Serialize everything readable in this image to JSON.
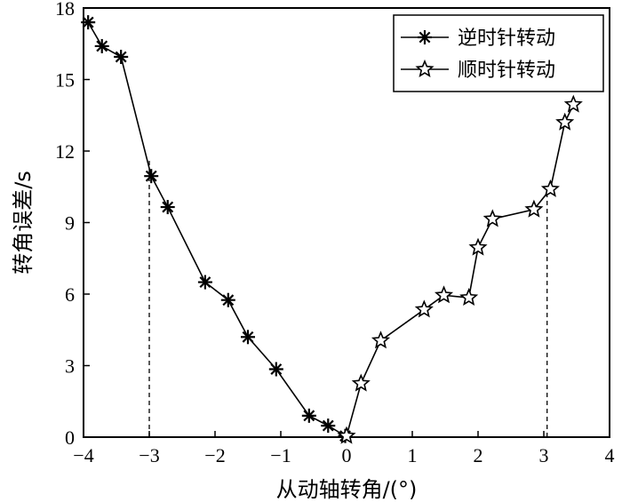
{
  "chart_data": {
    "type": "line",
    "xlabel": "从动轴转角/(°)",
    "ylabel": "转角误差/s",
    "xlim": [
      -4,
      4
    ],
    "ylim": [
      0,
      18
    ],
    "xticks": [
      -4,
      -3,
      -2,
      -1,
      0,
      1,
      2,
      3,
      4
    ],
    "yticks": [
      0,
      3,
      6,
      9,
      12,
      15,
      18
    ],
    "xtick_labels": [
      "−4",
      "−3",
      "−2",
      "−1",
      "0",
      "1",
      "2",
      "3",
      "4"
    ],
    "ytick_labels": [
      "0",
      "3",
      "6",
      "9",
      "12",
      "15",
      "18"
    ],
    "legend_position": "top-right",
    "grid": false,
    "reference_lines": [
      {
        "x": -3.0,
        "y_to": 11.7
      },
      {
        "x": 3.05,
        "y_to": 10.2
      }
    ],
    "series": [
      {
        "name": "逆时针转动",
        "marker": "asterisk",
        "points": [
          [
            -3.93,
            17.4
          ],
          [
            -3.72,
            16.4
          ],
          [
            -3.43,
            15.95
          ],
          [
            -2.97,
            10.95
          ],
          [
            -2.72,
            9.65
          ],
          [
            -2.15,
            6.5
          ],
          [
            -1.8,
            5.75
          ],
          [
            -1.5,
            4.2
          ],
          [
            -1.07,
            2.85
          ],
          [
            -0.57,
            0.9
          ],
          [
            -0.28,
            0.48
          ],
          [
            -0.02,
            0.05
          ]
        ]
      },
      {
        "name": "顺时针转动",
        "marker": "star",
        "points": [
          [
            0.0,
            0.05
          ],
          [
            0.22,
            2.25
          ],
          [
            0.52,
            4.05
          ],
          [
            1.18,
            5.35
          ],
          [
            1.48,
            5.95
          ],
          [
            1.86,
            5.85
          ],
          [
            2.0,
            7.95
          ],
          [
            2.22,
            9.15
          ],
          [
            2.85,
            9.55
          ],
          [
            3.1,
            10.4
          ],
          [
            3.32,
            13.2
          ],
          [
            3.45,
            13.95
          ]
        ]
      }
    ]
  }
}
